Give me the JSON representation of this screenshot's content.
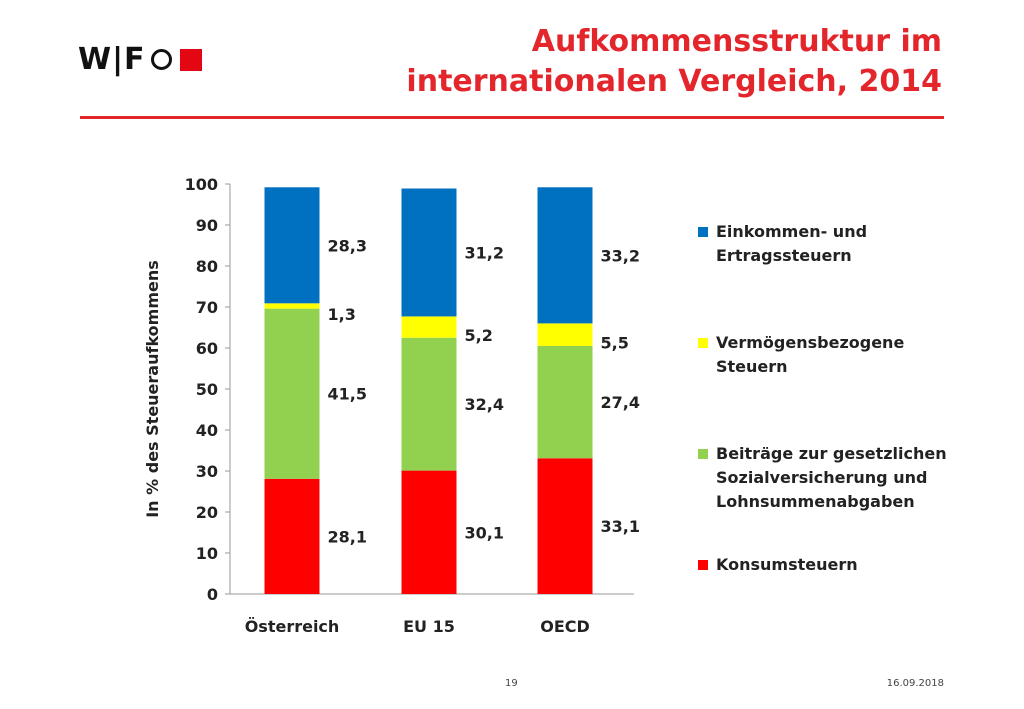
{
  "header": {
    "logo_text": "W|F",
    "title_line1": "Aufkommensstruktur im",
    "title_line2": "internationalen Vergleich, 2014"
  },
  "colors": {
    "accent": "#e3262b",
    "logo_red": "#e30613"
  },
  "chart_data": {
    "type": "bar",
    "stacked": true,
    "categories": [
      "Österreich",
      "EU 15",
      "OECD"
    ],
    "series": [
      {
        "name": "Konsumsteuern",
        "values": [
          28.1,
          30.1,
          33.1
        ],
        "labels": [
          "28,1",
          "30,1",
          "33,1"
        ],
        "color": "#ff0000"
      },
      {
        "name": "Beiträge zur gesetzlichen Sozialversicherung und Lohnsummenabgaben",
        "values": [
          41.5,
          32.4,
          27.4
        ],
        "labels": [
          "41,5",
          "32,4",
          "27,4"
        ],
        "color": "#92d050"
      },
      {
        "name": "Vermögensbezogene Steuern",
        "values": [
          1.3,
          5.2,
          5.5
        ],
        "labels": [
          "1,3",
          "5,2",
          "5,5"
        ],
        "color": "#ffff00"
      },
      {
        "name": "Einkommen- und Ertragssteuern",
        "values": [
          28.3,
          31.2,
          33.2
        ],
        "labels": [
          "28,3",
          "31,2",
          "33,2"
        ],
        "color": "#0070c0"
      }
    ],
    "ylabel": "In % des Steueraufkommens",
    "ylim": [
      0,
      100
    ],
    "yticks": [
      0,
      10,
      20,
      30,
      40,
      50,
      60,
      70,
      80,
      90,
      100
    ],
    "grid": false,
    "legend_position": "right"
  },
  "legend": [
    {
      "label": "Einkommen- und\nErtragssteuern",
      "color": "#0070c0"
    },
    {
      "label": "Vermögensbezogene\nSteuern",
      "color": "#ffff00"
    },
    {
      "label": "Beiträge zur gesetzlichen\nSozialversicherung und\nLohnsummenabgaben",
      "color": "#92d050"
    },
    {
      "label": "Konsumsteuern",
      "color": "#ff0000"
    }
  ],
  "footer": {
    "page": "19",
    "date": "16.09.2018"
  }
}
